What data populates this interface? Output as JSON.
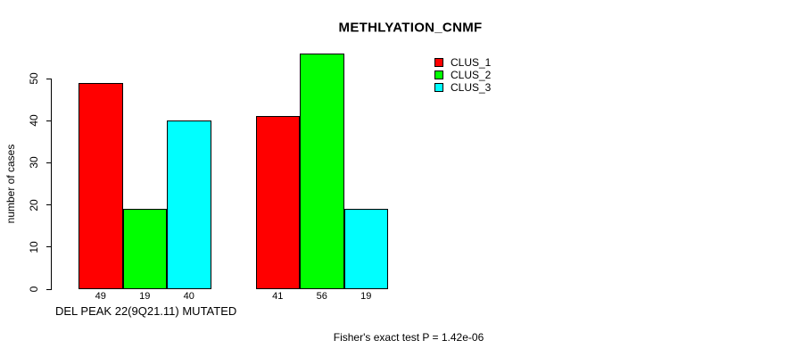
{
  "chart_data": {
    "type": "bar",
    "title": "METHLYATION_CNMF",
    "ylabel": "number of cases",
    "xlabel": "DEL PEAK 22(9Q21.11) MUTATED",
    "annotation": "Fisher's exact test P = 1.42e-06",
    "ylim": [
      0,
      56
    ],
    "yticks": [
      0,
      10,
      20,
      30,
      40,
      50
    ],
    "grid": false,
    "bar_value_labels_shown": true,
    "legend_position": "top-right",
    "background_color": "#ffffff",
    "axis_color": "#000000",
    "n_groups": 2,
    "series": [
      {
        "name": "CLUS_1",
        "color": "#ff0000",
        "values": [
          49,
          41
        ]
      },
      {
        "name": "CLUS_2",
        "color": "#00ff00",
        "values": [
          19,
          56
        ]
      },
      {
        "name": "CLUS_3",
        "color": "#00ffff",
        "values": [
          40,
          19
        ]
      }
    ]
  }
}
